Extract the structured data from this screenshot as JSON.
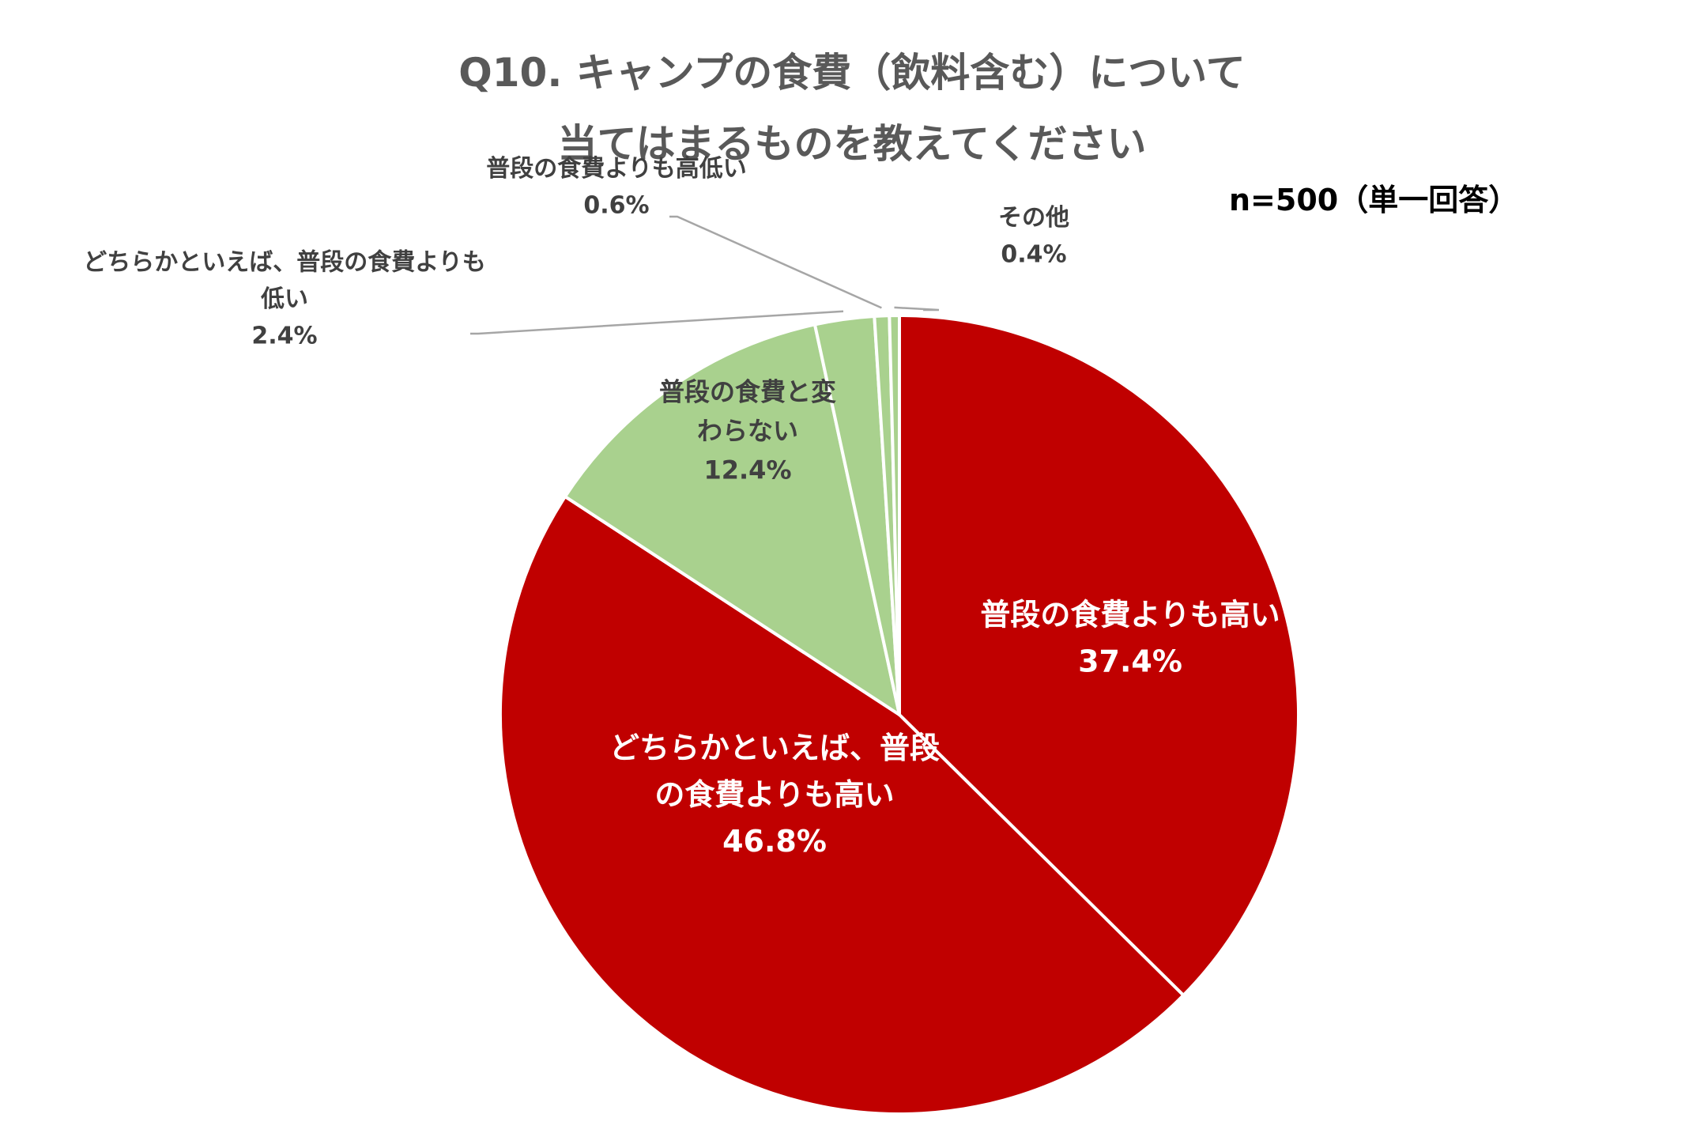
{
  "title_lines": [
    "Q10. キャンプの食費（飲料含む）について",
    "当てはまるものを教えてください"
  ],
  "sample_note": "n=500（単一回答）",
  "chart_data": {
    "type": "pie",
    "start_angle_deg": 0,
    "direction": "clockwise",
    "slices": [
      {
        "label_lines": [
          "普段の食費よりも高い"
        ],
        "value": 37.4,
        "value_label": "37.4%",
        "color": "#c00000",
        "label_color": "#ffffff"
      },
      {
        "label_lines": [
          "どちらかといえば、普段",
          "の食費よりも高い"
        ],
        "value": 46.8,
        "value_label": "46.8%",
        "color": "#c00000",
        "label_color": "#ffffff"
      },
      {
        "label_lines": [
          "普段の食費と変",
          "わらない"
        ],
        "value": 12.4,
        "value_label": "12.4%",
        "color": "#a9d18e",
        "label_color": "#404040"
      },
      {
        "label_lines": [
          "どちらかといえば、普段の食費よりも",
          "低い"
        ],
        "value": 2.4,
        "value_label": "2.4%",
        "color": "#a9d18e",
        "label_color": "#404040"
      },
      {
        "label_lines": [
          "普段の食費よりも高低い"
        ],
        "value": 0.6,
        "value_label": "0.6%",
        "color": "#a9d18e",
        "label_color": "#404040"
      },
      {
        "label_lines": [
          "その他"
        ],
        "value": 0.4,
        "value_label": "0.4%",
        "color": "#a9d18e",
        "label_color": "#404040"
      }
    ],
    "leader_color": "#a6a6a6",
    "slice_border_color": "#ffffff"
  }
}
